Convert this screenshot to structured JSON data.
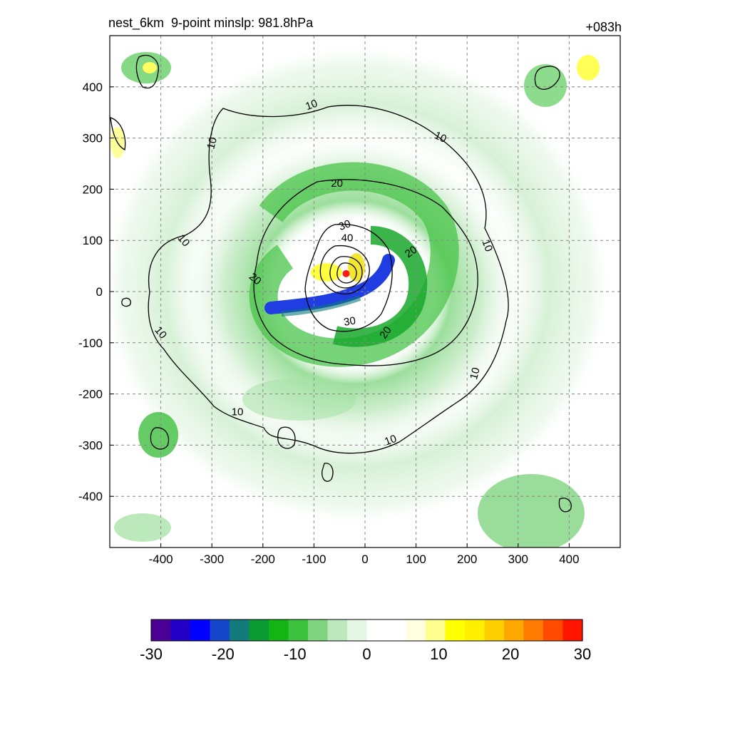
{
  "header": {
    "left_title": "nest_6km  9-point minslp: 981.8hPa",
    "right_title": "+083h"
  },
  "chart_data": {
    "type": "contour",
    "xlim": [
      -500,
      500
    ],
    "ylim": [
      -500,
      500
    ],
    "x_ticks": [
      -400,
      -300,
      -200,
      -100,
      0,
      100,
      200,
      300,
      400
    ],
    "y_ticks": [
      -400,
      -300,
      -200,
      -100,
      0,
      100,
      200,
      300,
      400
    ],
    "grid": true,
    "grid_style": "dashed",
    "center_marker": {
      "x": -37,
      "y": 35,
      "color": "#ff1a1a"
    },
    "contour_levels": [
      10,
      20,
      30,
      40,
      50,
      60,
      70
    ],
    "contour_labels": [
      {
        "text": "10",
        "x": -105,
        "y": 365,
        "rot": -20
      },
      {
        "text": "10",
        "x": 148,
        "y": 302,
        "rot": 25
      },
      {
        "text": "10",
        "x": -300,
        "y": 290,
        "rot": -75
      },
      {
        "text": "10",
        "x": -355,
        "y": 100,
        "rot": 50
      },
      {
        "text": "10",
        "x": 240,
        "y": 90,
        "rot": 70
      },
      {
        "text": "10",
        "x": -400,
        "y": -80,
        "rot": 50
      },
      {
        "text": "10",
        "x": 215,
        "y": -160,
        "rot": -75
      },
      {
        "text": "10",
        "x": -250,
        "y": -235,
        "rot": 0
      },
      {
        "text": "10",
        "x": 50,
        "y": -290,
        "rot": -20
      },
      {
        "text": "20",
        "x": -55,
        "y": 212,
        "rot": 0
      },
      {
        "text": "20",
        "x": 90,
        "y": 78,
        "rot": -35
      },
      {
        "text": "20",
        "x": -215,
        "y": 25,
        "rot": 40
      },
      {
        "text": "20",
        "x": 40,
        "y": -80,
        "rot": -55
      },
      {
        "text": "30",
        "x": -40,
        "y": 130,
        "rot": -20
      },
      {
        "text": "30",
        "x": -30,
        "y": -58,
        "rot": -10
      },
      {
        "text": "40",
        "x": -35,
        "y": 105,
        "rot": 0
      }
    ],
    "colorbar": {
      "min": -30,
      "max": 30,
      "tick_labels": [
        "-30",
        "-20",
        "-10",
        "0",
        "10",
        "20",
        "30"
      ],
      "stops": [
        "#4b0095",
        "#2200c8",
        "#0000ff",
        "#1545c8",
        "#127a7a",
        "#0a9a32",
        "#14b414",
        "#3cc23c",
        "#7ed47e",
        "#bde8bd",
        "#e4f6e4",
        "#ffffff",
        "#ffffff",
        "#ffffe0",
        "#ffff90",
        "#ffff00",
        "#fff000",
        "#ffd000",
        "#ffa800",
        "#ff7a00",
        "#ff4a00",
        "#ff1400"
      ]
    }
  }
}
